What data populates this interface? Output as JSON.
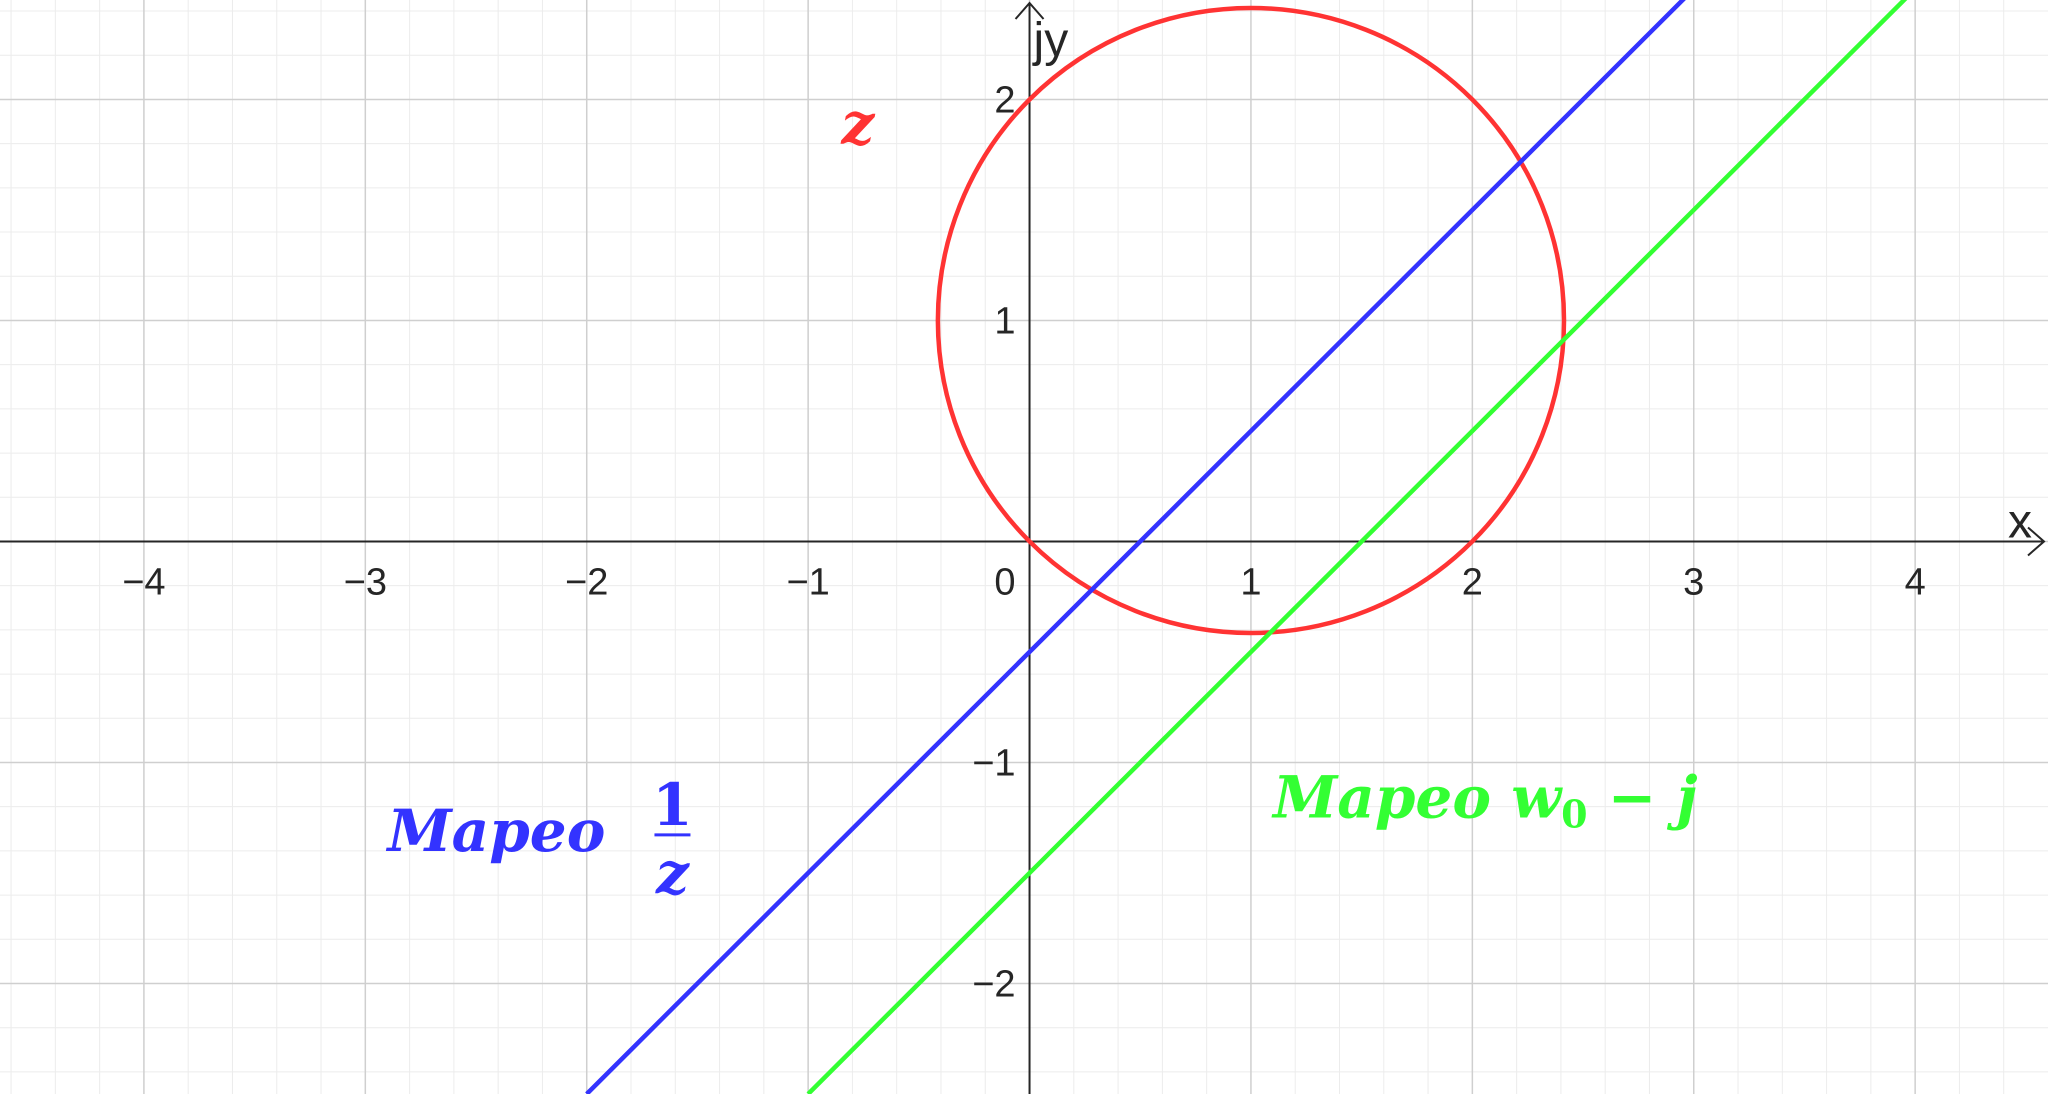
{
  "chart_data": {
    "type": "line",
    "title": "",
    "xlabel": "x",
    "ylabel": "jy",
    "xlim": [
      -4.65,
      4.6
    ],
    "ylim": [
      -2.5,
      2.45
    ],
    "x_ticks": [
      -4,
      -3,
      -2,
      -1,
      1,
      2,
      3,
      4
    ],
    "y_ticks": [
      -2,
      -1,
      1,
      2
    ],
    "origin_label": "0",
    "tick_labels_x": [
      "−4",
      "−3",
      "−2",
      "−1",
      "1",
      "2",
      "3",
      "4"
    ],
    "tick_labels_y": [
      "−2",
      "−1",
      "1",
      "2"
    ],
    "grid": true,
    "series": [
      {
        "name": "z",
        "kind": "circle",
        "center": [
          1,
          1
        ],
        "radius": 1.414,
        "color": "#ff3333"
      },
      {
        "name": "Mapeo 1/z",
        "kind": "line",
        "points": [
          [
            -2,
            -2.5
          ],
          [
            3,
            2.5
          ]
        ],
        "color": "#3333ff"
      },
      {
        "name": "Mapeo w0 − j",
        "kind": "line",
        "points": [
          [
            -1,
            -2.5
          ],
          [
            4,
            2.5
          ]
        ],
        "color": "#33ff33"
      }
    ],
    "annotations": [
      {
        "id": "z",
        "text": "z",
        "at": [
          -0.85,
          1.8
        ],
        "color": "#ff3333"
      },
      {
        "id": "inv",
        "text": "Mapeo",
        "frac_num": "1",
        "frac_den": "z",
        "at": [
          -2.9,
          -1.4
        ],
        "color": "#3333ff"
      },
      {
        "id": "w0",
        "text": "Mapeo w",
        "subscript": "0",
        "suffix": " − j",
        "at": [
          1.1,
          -1.25
        ],
        "color": "#33ff33"
      }
    ]
  }
}
